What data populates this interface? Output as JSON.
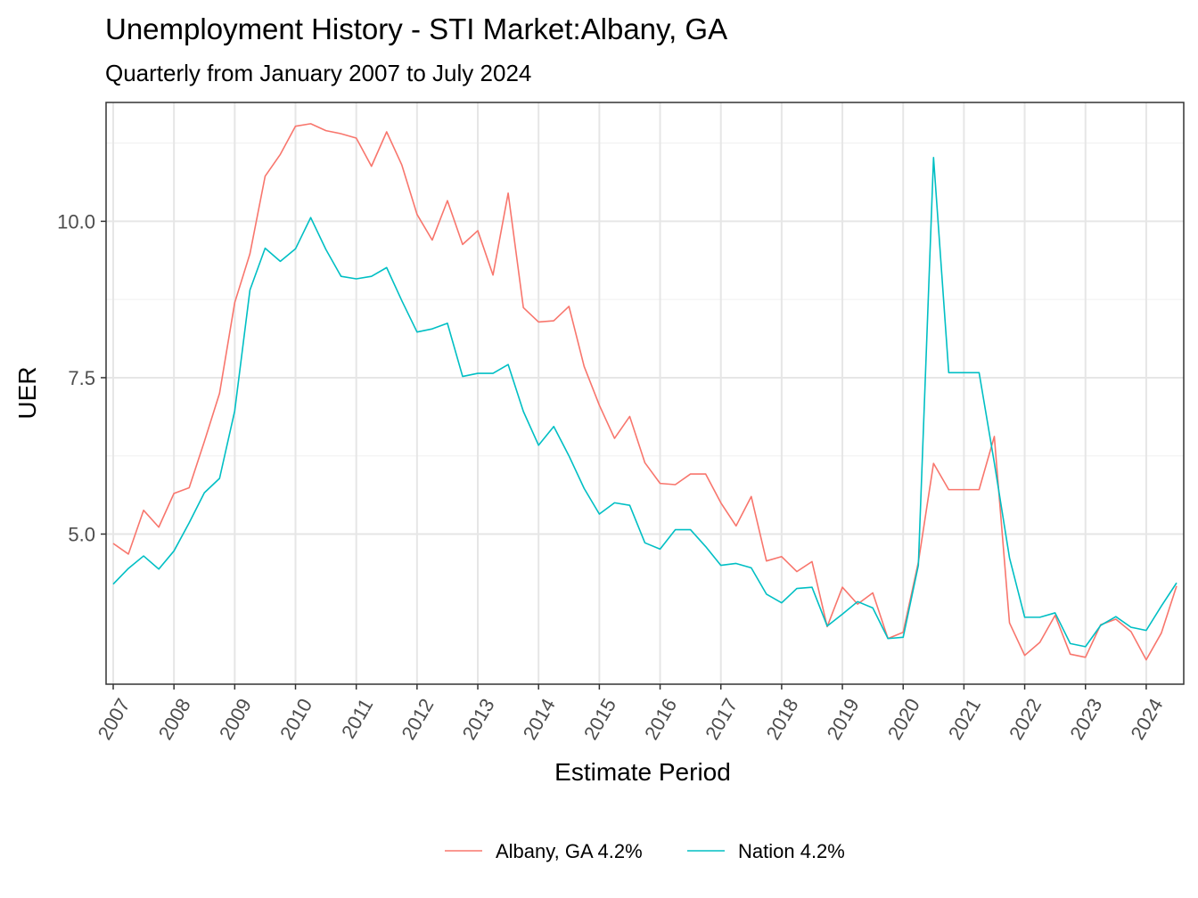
{
  "chart_data": {
    "type": "line",
    "title": "Unemployment History - STI Market:Albany, GA",
    "subtitle": "Quarterly from January 2007 to July 2024",
    "xlabel": "Estimate Period",
    "ylabel": "UER",
    "x_start_year": 2007,
    "x_end_year": 2024.5,
    "xlim": [
      2007,
      2024.5
    ],
    "ylim": [
      2.6,
      11.9
    ],
    "y_ticks": [
      5.0,
      7.5,
      10.0
    ],
    "y_tick_labels": [
      "5.0",
      "7.5",
      "10.0"
    ],
    "x_ticks": [
      2007,
      2008,
      2009,
      2010,
      2011,
      2012,
      2013,
      2014,
      2015,
      2016,
      2017,
      2018,
      2019,
      2020,
      2021,
      2022,
      2023,
      2024
    ],
    "x_tick_labels": [
      "2007",
      "2008",
      "2009",
      "2010",
      "2011",
      "2012",
      "2013",
      "2014",
      "2015",
      "2016",
      "2017",
      "2018",
      "2019",
      "2020",
      "2021",
      "2022",
      "2023",
      "2024"
    ],
    "grid": true,
    "legend_position": "bottom",
    "series": [
      {
        "name": "Albany, GA 4.2%",
        "color": "#F8766D",
        "values": [
          4.85,
          4.68,
          5.38,
          5.11,
          5.65,
          5.74,
          6.48,
          7.25,
          8.7,
          9.48,
          10.72,
          11.07,
          11.52,
          11.56,
          11.45,
          11.4,
          11.33,
          10.88,
          11.43,
          10.9,
          10.11,
          9.7,
          10.33,
          9.63,
          9.85,
          9.14,
          10.45,
          8.62,
          8.39,
          8.41,
          8.64,
          7.68,
          7.06,
          6.53,
          6.88,
          6.14,
          5.81,
          5.79,
          5.96,
          5.96,
          5.5,
          5.13,
          5.6,
          4.57,
          4.64,
          4.4,
          4.56,
          3.52,
          4.15,
          3.88,
          4.06,
          3.33,
          3.43,
          4.55,
          6.13,
          5.71,
          5.71,
          5.71,
          6.56,
          3.58,
          3.06,
          3.27,
          3.7,
          3.08,
          3.03,
          3.55,
          3.64,
          3.44,
          2.99,
          3.42,
          4.17
        ]
      },
      {
        "name": "Nation 4.2%",
        "color": "#00BFC4",
        "values": [
          4.2,
          4.45,
          4.65,
          4.44,
          4.73,
          5.18,
          5.66,
          5.89,
          6.97,
          8.9,
          9.57,
          9.36,
          9.56,
          10.06,
          9.55,
          9.12,
          9.08,
          9.12,
          9.26,
          8.73,
          8.23,
          8.28,
          8.37,
          7.52,
          7.57,
          7.57,
          7.71,
          6.96,
          6.42,
          6.72,
          6.25,
          5.73,
          5.32,
          5.5,
          5.46,
          4.86,
          4.76,
          5.07,
          5.07,
          4.8,
          4.5,
          4.53,
          4.46,
          4.04,
          3.9,
          4.13,
          4.15,
          3.53,
          3.72,
          3.92,
          3.82,
          3.33,
          3.35,
          4.5,
          11.02,
          7.58,
          7.58,
          7.58,
          6.14,
          4.62,
          3.67,
          3.67,
          3.74,
          3.25,
          3.2,
          3.54,
          3.68,
          3.51,
          3.46,
          3.85,
          4.22
        ]
      }
    ]
  }
}
